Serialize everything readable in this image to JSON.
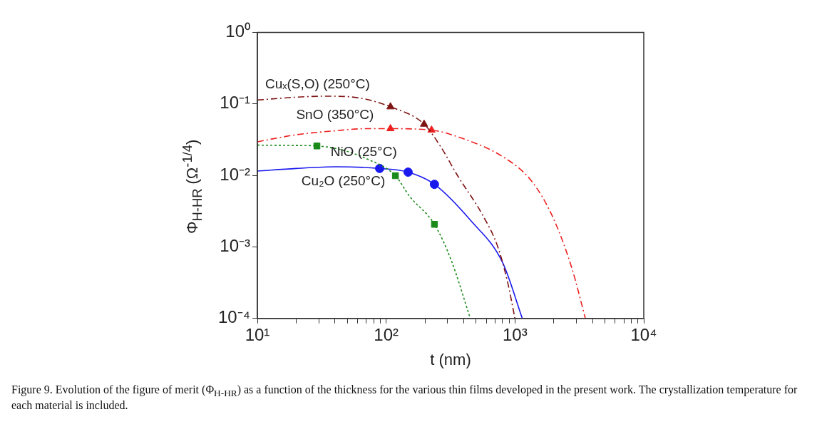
{
  "chart_data": {
    "type": "line",
    "xlabel": "t (nm)",
    "ylabel": "Φ$_{H-HR}$ (Ω$^{-1/4}$)",
    "log": "xy",
    "grid": false,
    "xlim": [
      10,
      10000
    ],
    "xticks": [
      {
        "value": 10,
        "label": "10¹"
      },
      {
        "value": 20,
        "label": null
      },
      {
        "value": 30,
        "label": null
      },
      {
        "value": 40,
        "label": null
      },
      {
        "value": 50,
        "label": null
      },
      {
        "value": 60,
        "label": null
      },
      {
        "value": 70,
        "label": null
      },
      {
        "value": 80,
        "label": null
      },
      {
        "value": 90,
        "label": null
      },
      {
        "value": 100,
        "label": "10²"
      },
      {
        "value": 200,
        "label": null
      },
      {
        "value": 300,
        "label": null
      },
      {
        "value": 400,
        "label": null
      },
      {
        "value": 500,
        "label": null
      },
      {
        "value": 600,
        "label": null
      },
      {
        "value": 700,
        "label": null
      },
      {
        "value": 800,
        "label": null
      },
      {
        "value": 900,
        "label": null
      },
      {
        "value": 1000,
        "label": "10³"
      },
      {
        "value": 2000,
        "label": null
      },
      {
        "value": 3000,
        "label": null
      },
      {
        "value": 4000,
        "label": null
      },
      {
        "value": 5000,
        "label": null
      },
      {
        "value": 6000,
        "label": null
      },
      {
        "value": 7000,
        "label": null
      },
      {
        "value": 8000,
        "label": null
      },
      {
        "value": 9000,
        "label": null
      },
      {
        "value": 10000,
        "label": "10⁴"
      }
    ],
    "ylim": [
      0.0001,
      1
    ],
    "yticks": [
      {
        "value": 0.0001,
        "label": "10⁻⁴"
      },
      {
        "value": 0.001,
        "label": "10⁻³"
      },
      {
        "value": 0.01,
        "label": "10⁻²"
      },
      {
        "value": 0.1,
        "label": "10⁻¹"
      },
      {
        "value": 1,
        "label": "10⁰"
      }
    ],
    "series": [
      {
        "name": "Cuₓ(S,O) (250°C)",
        "type": "line",
        "color": "#7f1414",
        "line_style": "dashed",
        "marker": "none",
        "x": [
          10,
          20,
          35,
          60,
          108,
          197,
          265,
          360,
          565,
          736,
          877,
          1000
        ],
        "values": [
          0.113,
          0.124,
          0.128,
          0.122,
          0.091,
          0.052,
          0.0252,
          0.0098,
          0.00272,
          0.001,
          0.00032,
          0.0001
        ]
      },
      {
        "type": "scatter",
        "color": "#7f1414",
        "marker": "triangle",
        "x": [
          108,
          197
        ],
        "values": [
          0.091,
          0.052
        ]
      },
      {
        "name": "SnO (350°C)",
        "type": "line",
        "color": "#ee2020",
        "line_style": "dashed",
        "marker": "none",
        "x": [
          10,
          20,
          40,
          70,
          108,
          225,
          360,
          806,
          1334,
          1950,
          2760,
          3520
        ],
        "values": [
          0.0295,
          0.037,
          0.042,
          0.045,
          0.045,
          0.043,
          0.0346,
          0.0182,
          0.0085,
          0.0027,
          0.00051,
          0.0001
        ]
      },
      {
        "type": "scatter",
        "color": "#ee2020",
        "marker": "triangle",
        "x": [
          108,
          225
        ],
        "values": [
          0.045,
          0.043
        ]
      },
      {
        "name": "NiO (25°C)",
        "type": "line",
        "color": "#1a8a1a",
        "line_style": "dotted",
        "marker": "none",
        "x": [
          10,
          20,
          29,
          44,
          71,
          118,
          152,
          237,
          320,
          450
        ],
        "values": [
          0.0265,
          0.0262,
          0.0258,
          0.023,
          0.017,
          0.0099,
          0.0051,
          0.00207,
          0.00065,
          0.0001
        ]
      },
      {
        "type": "scatter",
        "color": "#1a8a1a",
        "marker": "square",
        "x": [
          29,
          118,
          237
        ],
        "values": [
          0.0258,
          0.0099,
          0.00207
        ]
      },
      {
        "name": "Cu₂O (250°C)",
        "type": "line",
        "color": "#1a1aee",
        "line_style": "solid",
        "marker": "none",
        "x": [
          10,
          20,
          41,
          89,
          148,
          237,
          454,
          803,
          1140
        ],
        "values": [
          0.0115,
          0.0125,
          0.0132,
          0.0125,
          0.0111,
          0.0075,
          0.00233,
          0.0006,
          0.0001
        ]
      },
      {
        "type": "scatter",
        "color": "#1a1aee",
        "marker": "circle",
        "x": [
          89,
          148,
          237
        ],
        "values": [
          0.0125,
          0.0111,
          0.0075
        ]
      }
    ],
    "annotations": [
      "Figure 9. Evolution of the figure of merit (Φ$_{H-HR}$) as a function of the thickness for the various thin films developed in the present work. The crystallization temperature for each material is included."
    ]
  }
}
